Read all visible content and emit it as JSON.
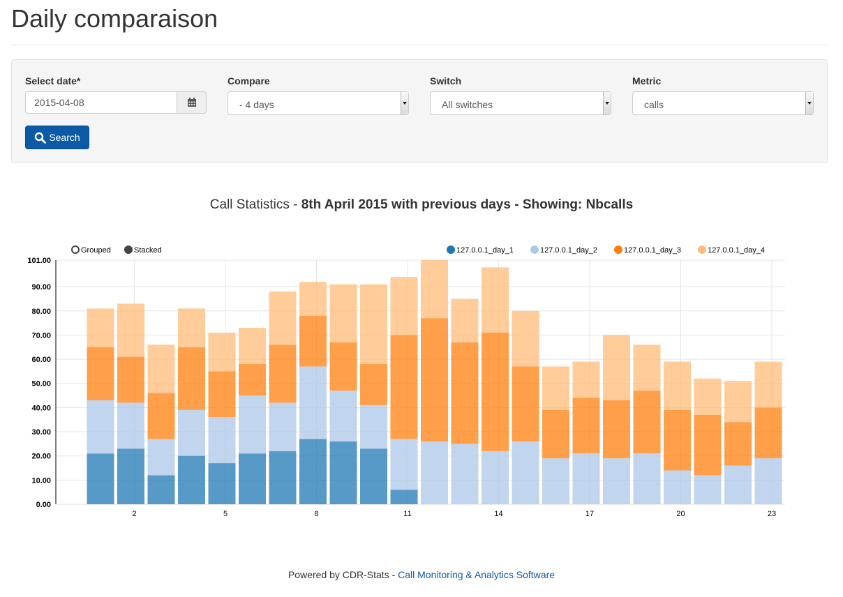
{
  "page": {
    "title": "Daily comparaison"
  },
  "form": {
    "date_label": "Select date*",
    "date_value": "2015-04-08",
    "calendar_icon": "calendar-icon",
    "compare_label": "Compare",
    "compare_value": "- 4 days",
    "switch_label": "Switch",
    "switch_value": "All switches",
    "metric_label": "Metric",
    "metric_value": "calls",
    "search_label": "Search",
    "search_icon": "search-icon",
    "button_color": "#0c5aa6"
  },
  "chart_title": {
    "prefix": "Call Statistics - ",
    "bold": "8th April 2015 with previous days - Showing: Nbcalls"
  },
  "controls": {
    "grouped": "Grouped",
    "stacked": "Stacked",
    "selected": "Stacked"
  },
  "chart_data": {
    "type": "bar",
    "stacked": true,
    "title": "Call Statistics - 8th April 2015 with previous days - Showing: Nbcalls",
    "legend_position": "top-right",
    "grid": true,
    "x": [
      1,
      2,
      3,
      4,
      5,
      6,
      7,
      8,
      9,
      10,
      11,
      12,
      13,
      14,
      15,
      16,
      17,
      18,
      19,
      20,
      21,
      22,
      23
    ],
    "x_tick_labels": [
      "2",
      "5",
      "8",
      "11",
      "14",
      "17",
      "20",
      "23"
    ],
    "y_tick_labels": [
      "0.00",
      "10.00",
      "20.00",
      "30.00",
      "40.00",
      "50.00",
      "60.00",
      "70.00",
      "80.00",
      "90.00",
      "101.00"
    ],
    "ylim": [
      0,
      101
    ],
    "series": [
      {
        "name": "127.0.0.1_day_1",
        "color": "#1f77b4",
        "values": [
          21,
          23,
          12,
          20,
          17,
          21,
          22,
          27,
          26,
          23,
          6,
          0,
          0,
          0,
          0,
          0,
          0,
          0,
          0,
          0,
          0,
          0,
          0
        ]
      },
      {
        "name": "127.0.0.1_day_2",
        "color": "#aec7e8",
        "values": [
          22,
          19,
          15,
          19,
          19,
          24,
          20,
          30,
          21,
          18,
          21,
          26,
          25,
          22,
          26,
          19,
          21,
          19,
          21,
          14,
          12,
          16,
          19
        ]
      },
      {
        "name": "127.0.0.1_day_3",
        "color": "#ff7f0e",
        "values": [
          22,
          19,
          19,
          26,
          19,
          13,
          24,
          21,
          20,
          17,
          43,
          51,
          42,
          49,
          31,
          20,
          23,
          24,
          26,
          25,
          25,
          18,
          21
        ]
      },
      {
        "name": "127.0.0.1_day_4",
        "color": "#ffbb78",
        "values": [
          16,
          22,
          20,
          16,
          16,
          15,
          22,
          14,
          24,
          33,
          24,
          24,
          18,
          27,
          23,
          18,
          15,
          27,
          19,
          20,
          15,
          17,
          19
        ]
      }
    ]
  },
  "footer": {
    "prefix": "Powered by CDR-Stats - ",
    "link": "Call Monitoring & Analytics Software",
    "link_color": "#0c5aa6"
  }
}
